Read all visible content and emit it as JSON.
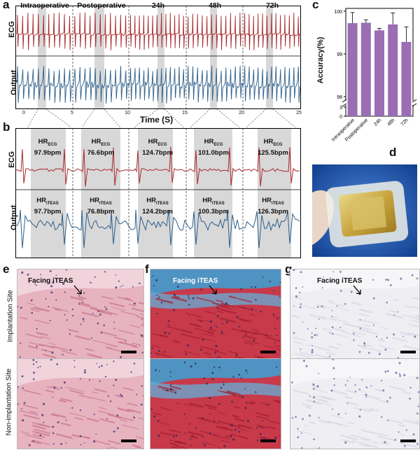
{
  "panels": {
    "a": "a",
    "b": "b",
    "c": "c",
    "d": "d",
    "e": "e",
    "f": "f",
    "g": "g"
  },
  "panel_a": {
    "stage_headers": [
      "Intraoperative",
      "Postoperative",
      "24h",
      "48h",
      "72h"
    ],
    "row_labels": {
      "ecg": "ECG",
      "output": "Output"
    },
    "x_ticks": [
      "0",
      "5",
      "10",
      "15",
      "20",
      "25"
    ],
    "x_label": "Time (S)"
  },
  "panel_b": {
    "row_labels": {
      "ecg": "ECG",
      "output": "Output"
    },
    "hr_label": "HR",
    "ecg_sub": "ECG",
    "iteas_sub": "iTEAS",
    "ecg_values": [
      "97.9bpm",
      "76.6bpm",
      "124.7bpm",
      "101.0bpm",
      "125.5bpm"
    ],
    "output_values": [
      "97.7bpm",
      "76.8bpm",
      "124.2bpm",
      "100.3bpm",
      "126.3bpm"
    ]
  },
  "chart_data": {
    "type": "bar",
    "categories": [
      "Intraoperative",
      "Postoperative",
      "24h",
      "48h",
      "72h"
    ],
    "values": [
      99.72,
      99.73,
      99.55,
      99.69,
      99.28
    ],
    "errors": [
      0.25,
      0.07,
      0.05,
      0.27,
      0.35
    ],
    "ylabel": "Accuracy(%)",
    "y_ticks": [
      "100",
      "99",
      "98",
      "3",
      "0"
    ],
    "ylim": [
      98,
      100
    ],
    "axis_break": true,
    "bar_color": "#9b6db4"
  },
  "histology": {
    "facing": "Facing iTEAS",
    "row_labels": {
      "top": "Implantation Site",
      "bottom": "Non-implantation Site"
    },
    "stain_colors": {
      "he": "#e7b3bf",
      "masson": "#c8394a",
      "ihc": "#eeeef3"
    }
  }
}
